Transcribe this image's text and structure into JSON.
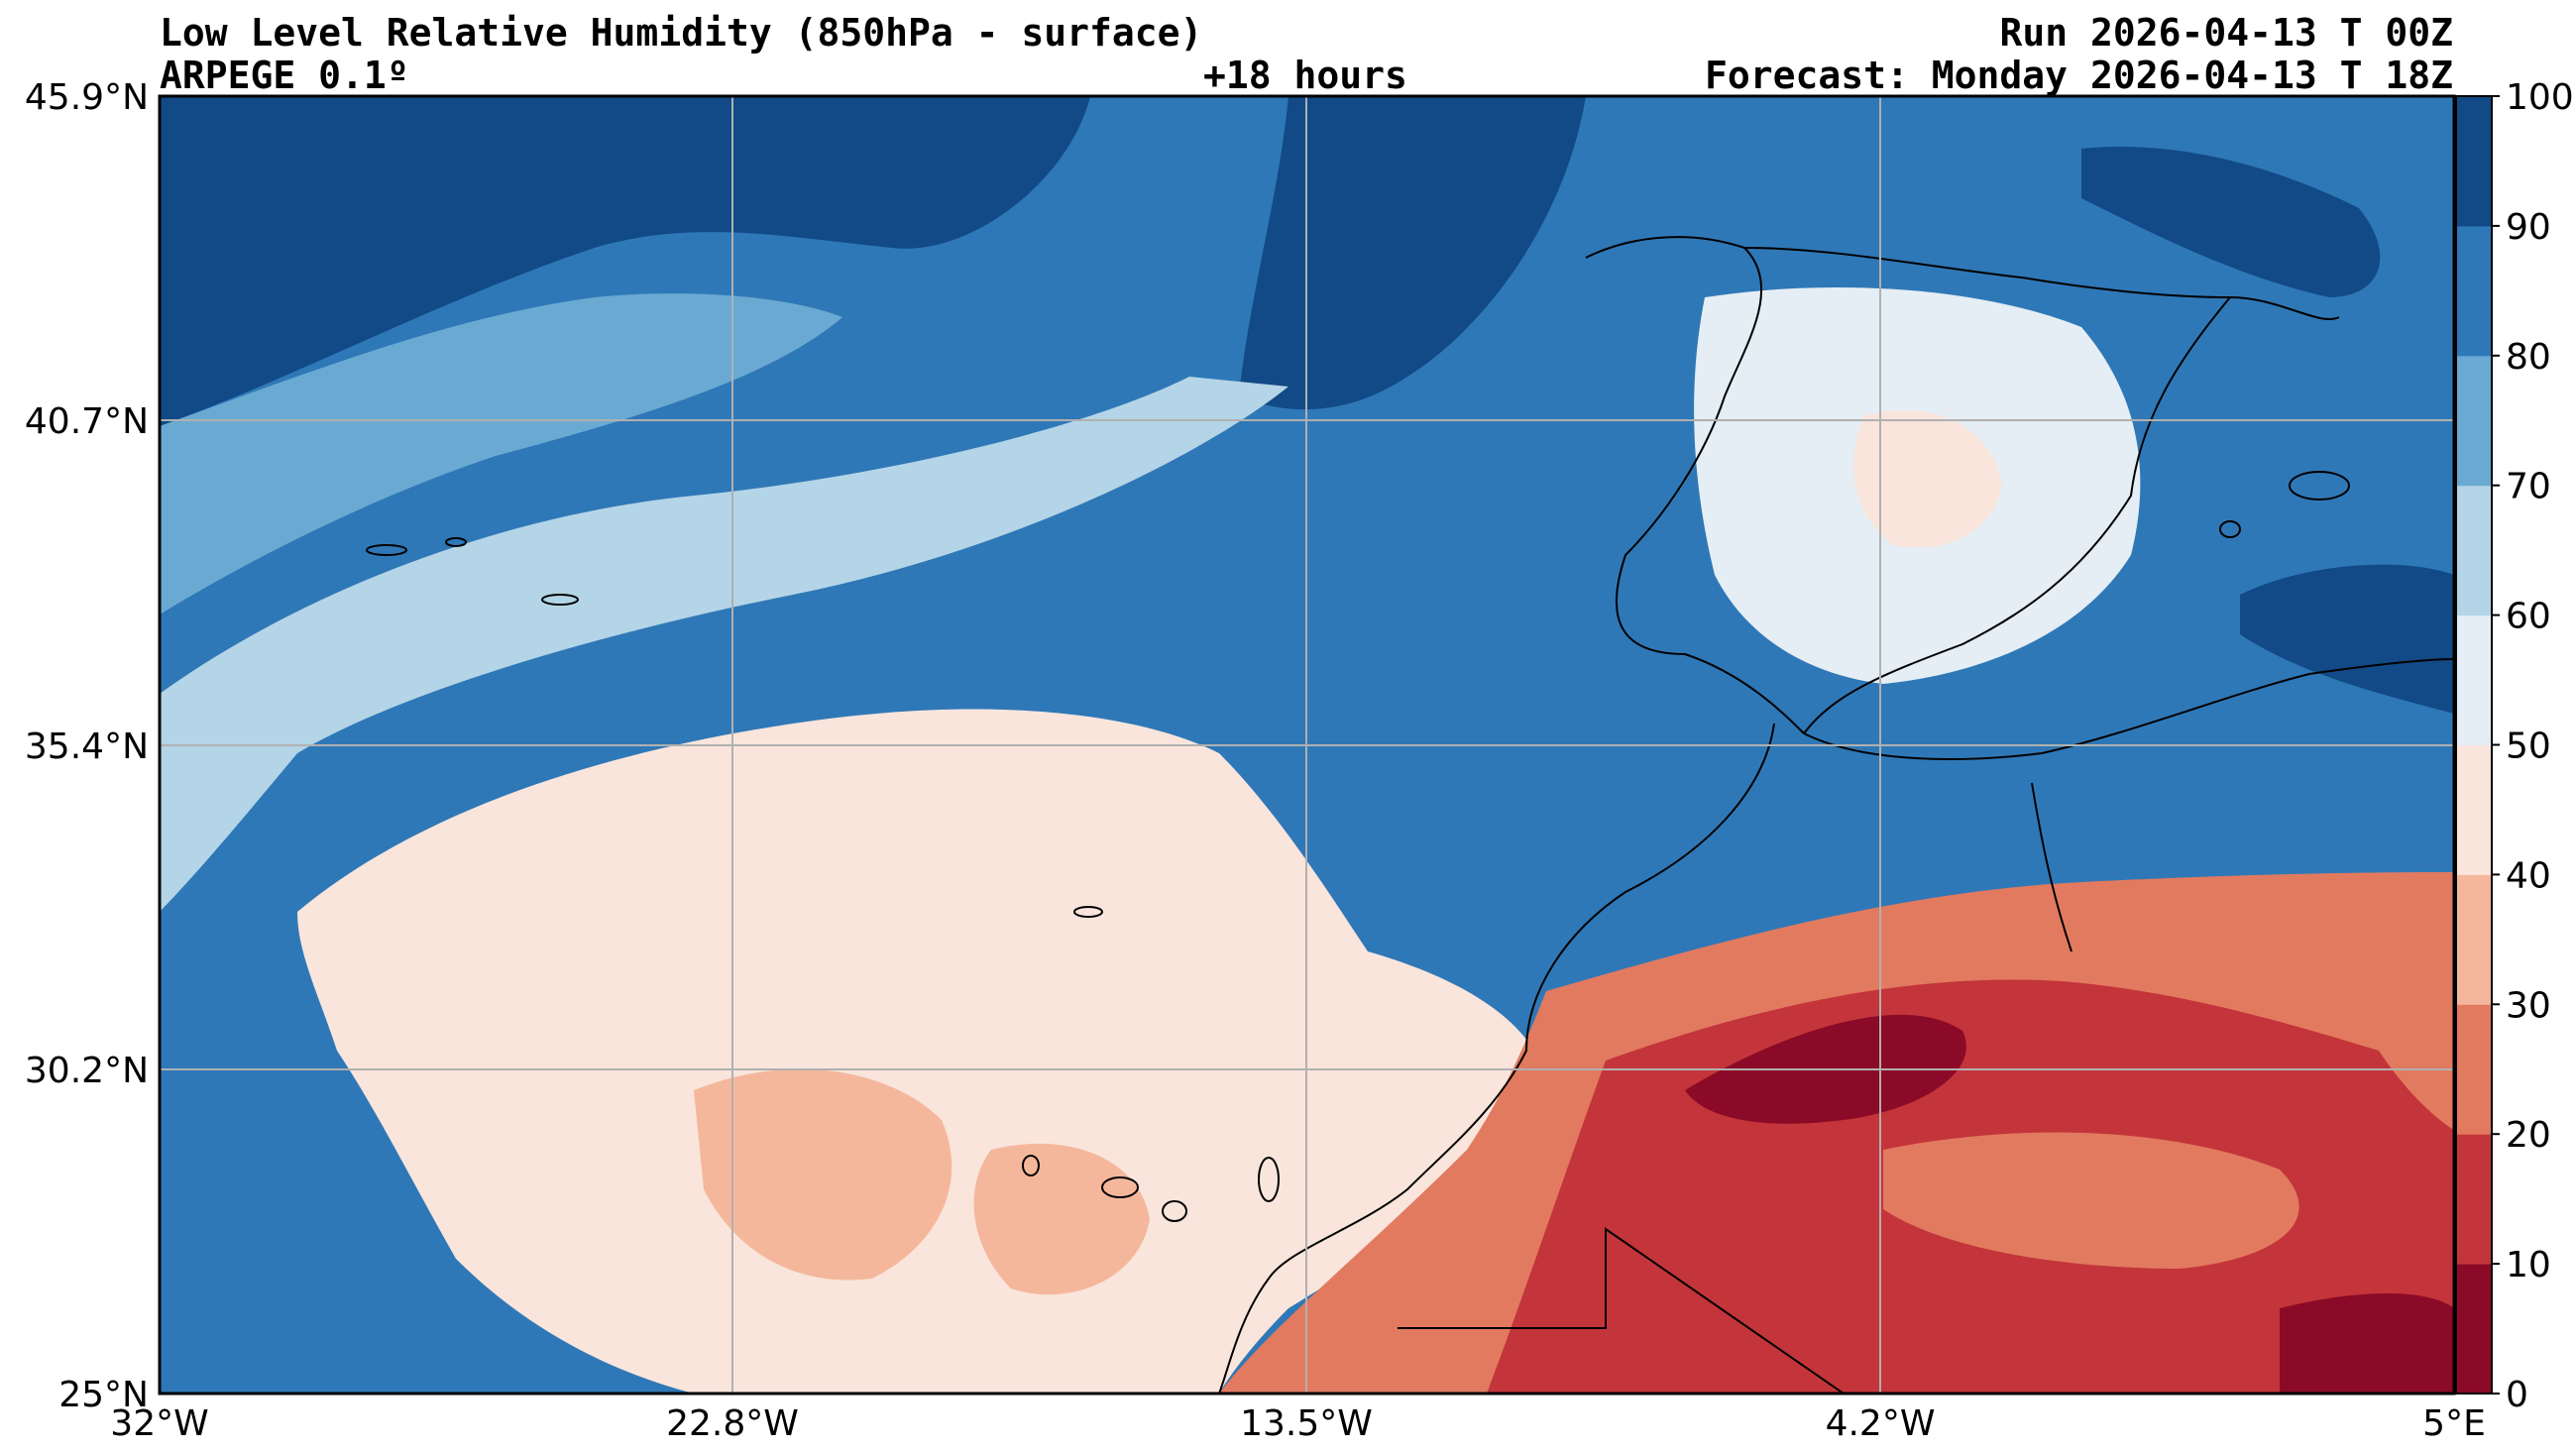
{
  "header": {
    "title": "Low Level Relative Humidity (850hPa - surface)",
    "model": "ARPEGE 0.1º",
    "lead": "+18 hours",
    "run": "Run 2026-04-13 T 00Z",
    "forecast": "Forecast: Monday 2026-04-13 T 18Z"
  },
  "map": {
    "x_ticks": [
      "32°W",
      "22.8°W",
      "13.5°W",
      "4.2°W",
      "5°E"
    ],
    "y_ticks": [
      "45.9°N",
      "40.7°N",
      "35.4°N",
      "30.2°N",
      "25°N"
    ]
  },
  "colorbar": {
    "ticks": [
      "0",
      "10",
      "20",
      "30",
      "40",
      "50",
      "60",
      "70",
      "80",
      "90",
      "100"
    ],
    "colors": [
      "#8b0a27",
      "#c3353a",
      "#e27a60",
      "#f5b79b",
      "#f9e5dc",
      "#e4eef4",
      "#b4d5e7",
      "#6aaad2",
      "#2f78b7",
      "#114a86"
    ]
  },
  "chart_data": {
    "type": "heatmap",
    "title": "Low Level Relative Humidity (850hPa - surface)",
    "xlabel": "",
    "ylabel": "",
    "xlim": [
      -32,
      5
    ],
    "ylim": [
      25,
      45.9
    ],
    "levels": [
      0,
      10,
      20,
      30,
      40,
      50,
      60,
      70,
      80,
      90,
      100
    ],
    "grid": true
  }
}
